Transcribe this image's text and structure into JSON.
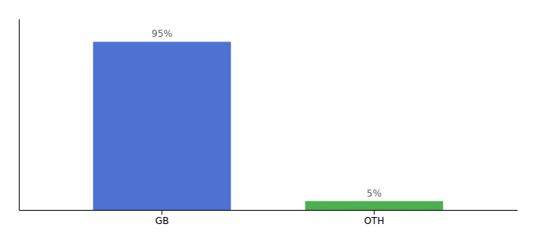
{
  "chart_data": {
    "type": "bar",
    "categories": [
      "GB",
      "OTH"
    ],
    "values": [
      95,
      5
    ],
    "value_labels": [
      "95%",
      "5%"
    ],
    "colors": [
      "#4d72d1",
      "#4caf50"
    ],
    "ylim": [
      0,
      108
    ],
    "data_labels": true,
    "tick_labels": "x",
    "grid": false
  }
}
